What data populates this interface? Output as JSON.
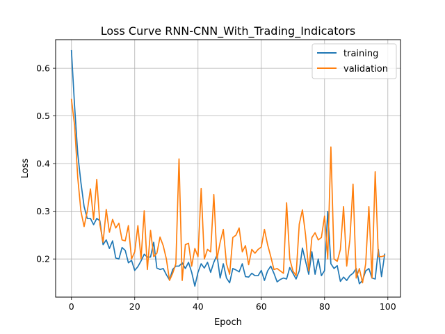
{
  "chart_data": {
    "type": "line",
    "title": "Loss Curve RNN-CNN_With_Trading_Indicators",
    "xlabel": "Epoch",
    "ylabel": "Loss",
    "xlim": [
      -5,
      104
    ],
    "ylim": [
      0.12,
      0.66
    ],
    "xticks": [
      0,
      20,
      40,
      60,
      80,
      100
    ],
    "yticks": [
      0.2,
      0.3,
      0.4,
      0.5,
      0.6
    ],
    "xtick_labels": [
      "0",
      "20",
      "40",
      "60",
      "80",
      "100"
    ],
    "ytick_labels": [
      "0.2",
      "0.3",
      "0.4",
      "0.5",
      "0.6"
    ],
    "grid": true,
    "legend_position": "top-right",
    "series": [
      {
        "name": "training",
        "color": "#1f77b4",
        "values": [
          0.637,
          0.52,
          0.42,
          0.36,
          0.31,
          0.285,
          0.285,
          0.272,
          0.285,
          0.28,
          0.23,
          0.24,
          0.222,
          0.238,
          0.202,
          0.2,
          0.224,
          0.218,
          0.192,
          0.197,
          0.176,
          0.184,
          0.196,
          0.21,
          0.204,
          0.204,
          0.235,
          0.181,
          0.178,
          0.18,
          0.167,
          0.156,
          0.178,
          0.185,
          0.185,
          0.192,
          0.18,
          0.193,
          0.172,
          0.143,
          0.172,
          0.19,
          0.181,
          0.193,
          0.172,
          0.193,
          0.208,
          0.16,
          0.19,
          0.16,
          0.15,
          0.18,
          0.177,
          0.173,
          0.19,
          0.163,
          0.162,
          0.17,
          0.165,
          0.165,
          0.176,
          0.155,
          0.175,
          0.185,
          0.17,
          0.152,
          0.157,
          0.16,
          0.158,
          0.182,
          0.17,
          0.158,
          0.175,
          0.223,
          0.195,
          0.168,
          0.215,
          0.168,
          0.2,
          0.165,
          0.176,
          0.3,
          0.19,
          0.18,
          0.186,
          0.153,
          0.162,
          0.155,
          0.165,
          0.17,
          0.18,
          0.148,
          0.155,
          0.175,
          0.18,
          0.16,
          0.158,
          0.22,
          0.163,
          0.21
        ]
      },
      {
        "name": "validation",
        "color": "#ff7f0e",
        "values": [
          0.535,
          0.48,
          0.37,
          0.3,
          0.268,
          0.3,
          0.347,
          0.283,
          0.367,
          0.272,
          0.235,
          0.304,
          0.256,
          0.283,
          0.265,
          0.275,
          0.24,
          0.238,
          0.27,
          0.2,
          0.215,
          0.27,
          0.2,
          0.301,
          0.178,
          0.26,
          0.205,
          0.212,
          0.246,
          0.228,
          0.2,
          0.155,
          0.17,
          0.19,
          0.41,
          0.155,
          0.23,
          0.233,
          0.185,
          0.222,
          0.205,
          0.348,
          0.2,
          0.22,
          0.215,
          0.335,
          0.2,
          0.235,
          0.262,
          0.19,
          0.168,
          0.245,
          0.25,
          0.265,
          0.215,
          0.228,
          0.188,
          0.22,
          0.212,
          0.22,
          0.225,
          0.262,
          0.23,
          0.205,
          0.178,
          0.18,
          0.175,
          0.17,
          0.318,
          0.2,
          0.175,
          0.165,
          0.273,
          0.303,
          0.25,
          0.175,
          0.245,
          0.255,
          0.24,
          0.245,
          0.29,
          0.2,
          0.435,
          0.2,
          0.195,
          0.22,
          0.31,
          0.185,
          0.24,
          0.357,
          0.16,
          0.18,
          0.15,
          0.19,
          0.31,
          0.16,
          0.383,
          0.205,
          0.205,
          0.207
        ]
      }
    ]
  }
}
